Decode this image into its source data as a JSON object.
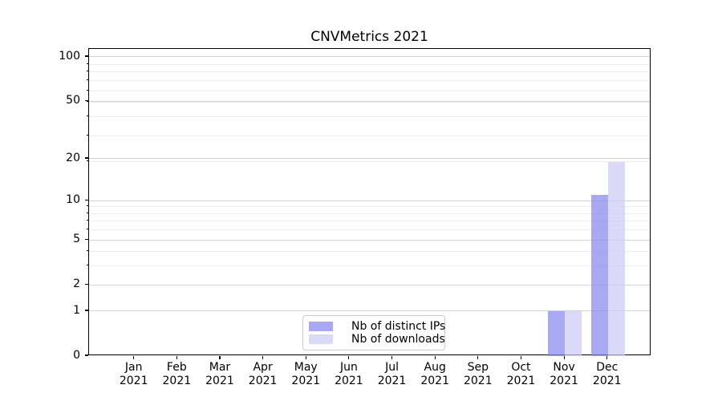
{
  "chart_data": {
    "type": "bar",
    "title": "CNVMetrics 2021",
    "x_labels": [
      [
        "Jan",
        "2021"
      ],
      [
        "Feb",
        "2021"
      ],
      [
        "Mar",
        "2021"
      ],
      [
        "Apr",
        "2021"
      ],
      [
        "May",
        "2021"
      ],
      [
        "Jun",
        "2021"
      ],
      [
        "Jul",
        "2021"
      ],
      [
        "Aug",
        "2021"
      ],
      [
        "Sep",
        "2021"
      ],
      [
        "Oct",
        "2021"
      ],
      [
        "Nov",
        "2021"
      ],
      [
        "Dec",
        "2021"
      ]
    ],
    "series": [
      {
        "name": "Nb of distinct IPs",
        "color": "rgba(136,136,238,0.72)",
        "values": [
          0,
          0,
          0,
          0,
          0,
          0,
          0,
          0,
          0,
          0,
          1,
          11
        ]
      },
      {
        "name": "Nb of downloads",
        "color": "rgba(204,204,245,0.72)",
        "values": [
          0,
          0,
          0,
          0,
          0,
          0,
          0,
          0,
          0,
          0,
          1,
          19
        ]
      }
    ],
    "y_axis": {
      "scale": "log10(value+1)",
      "ticks": [
        0,
        1,
        2,
        5,
        10,
        20,
        50,
        100
      ],
      "minor_gridline_values": [
        3,
        4,
        6,
        7,
        8,
        9,
        19,
        29,
        39,
        49,
        59,
        69,
        79,
        89
      ],
      "ylim": [
        0,
        113
      ]
    },
    "grid": {
      "major": true,
      "minor": true
    },
    "legend_position": "bottom-center",
    "colors": {
      "spine": "#000000",
      "major_grid": "#d2d2d2",
      "minor_grid": "#ededed",
      "background": "#ffffff"
    }
  }
}
